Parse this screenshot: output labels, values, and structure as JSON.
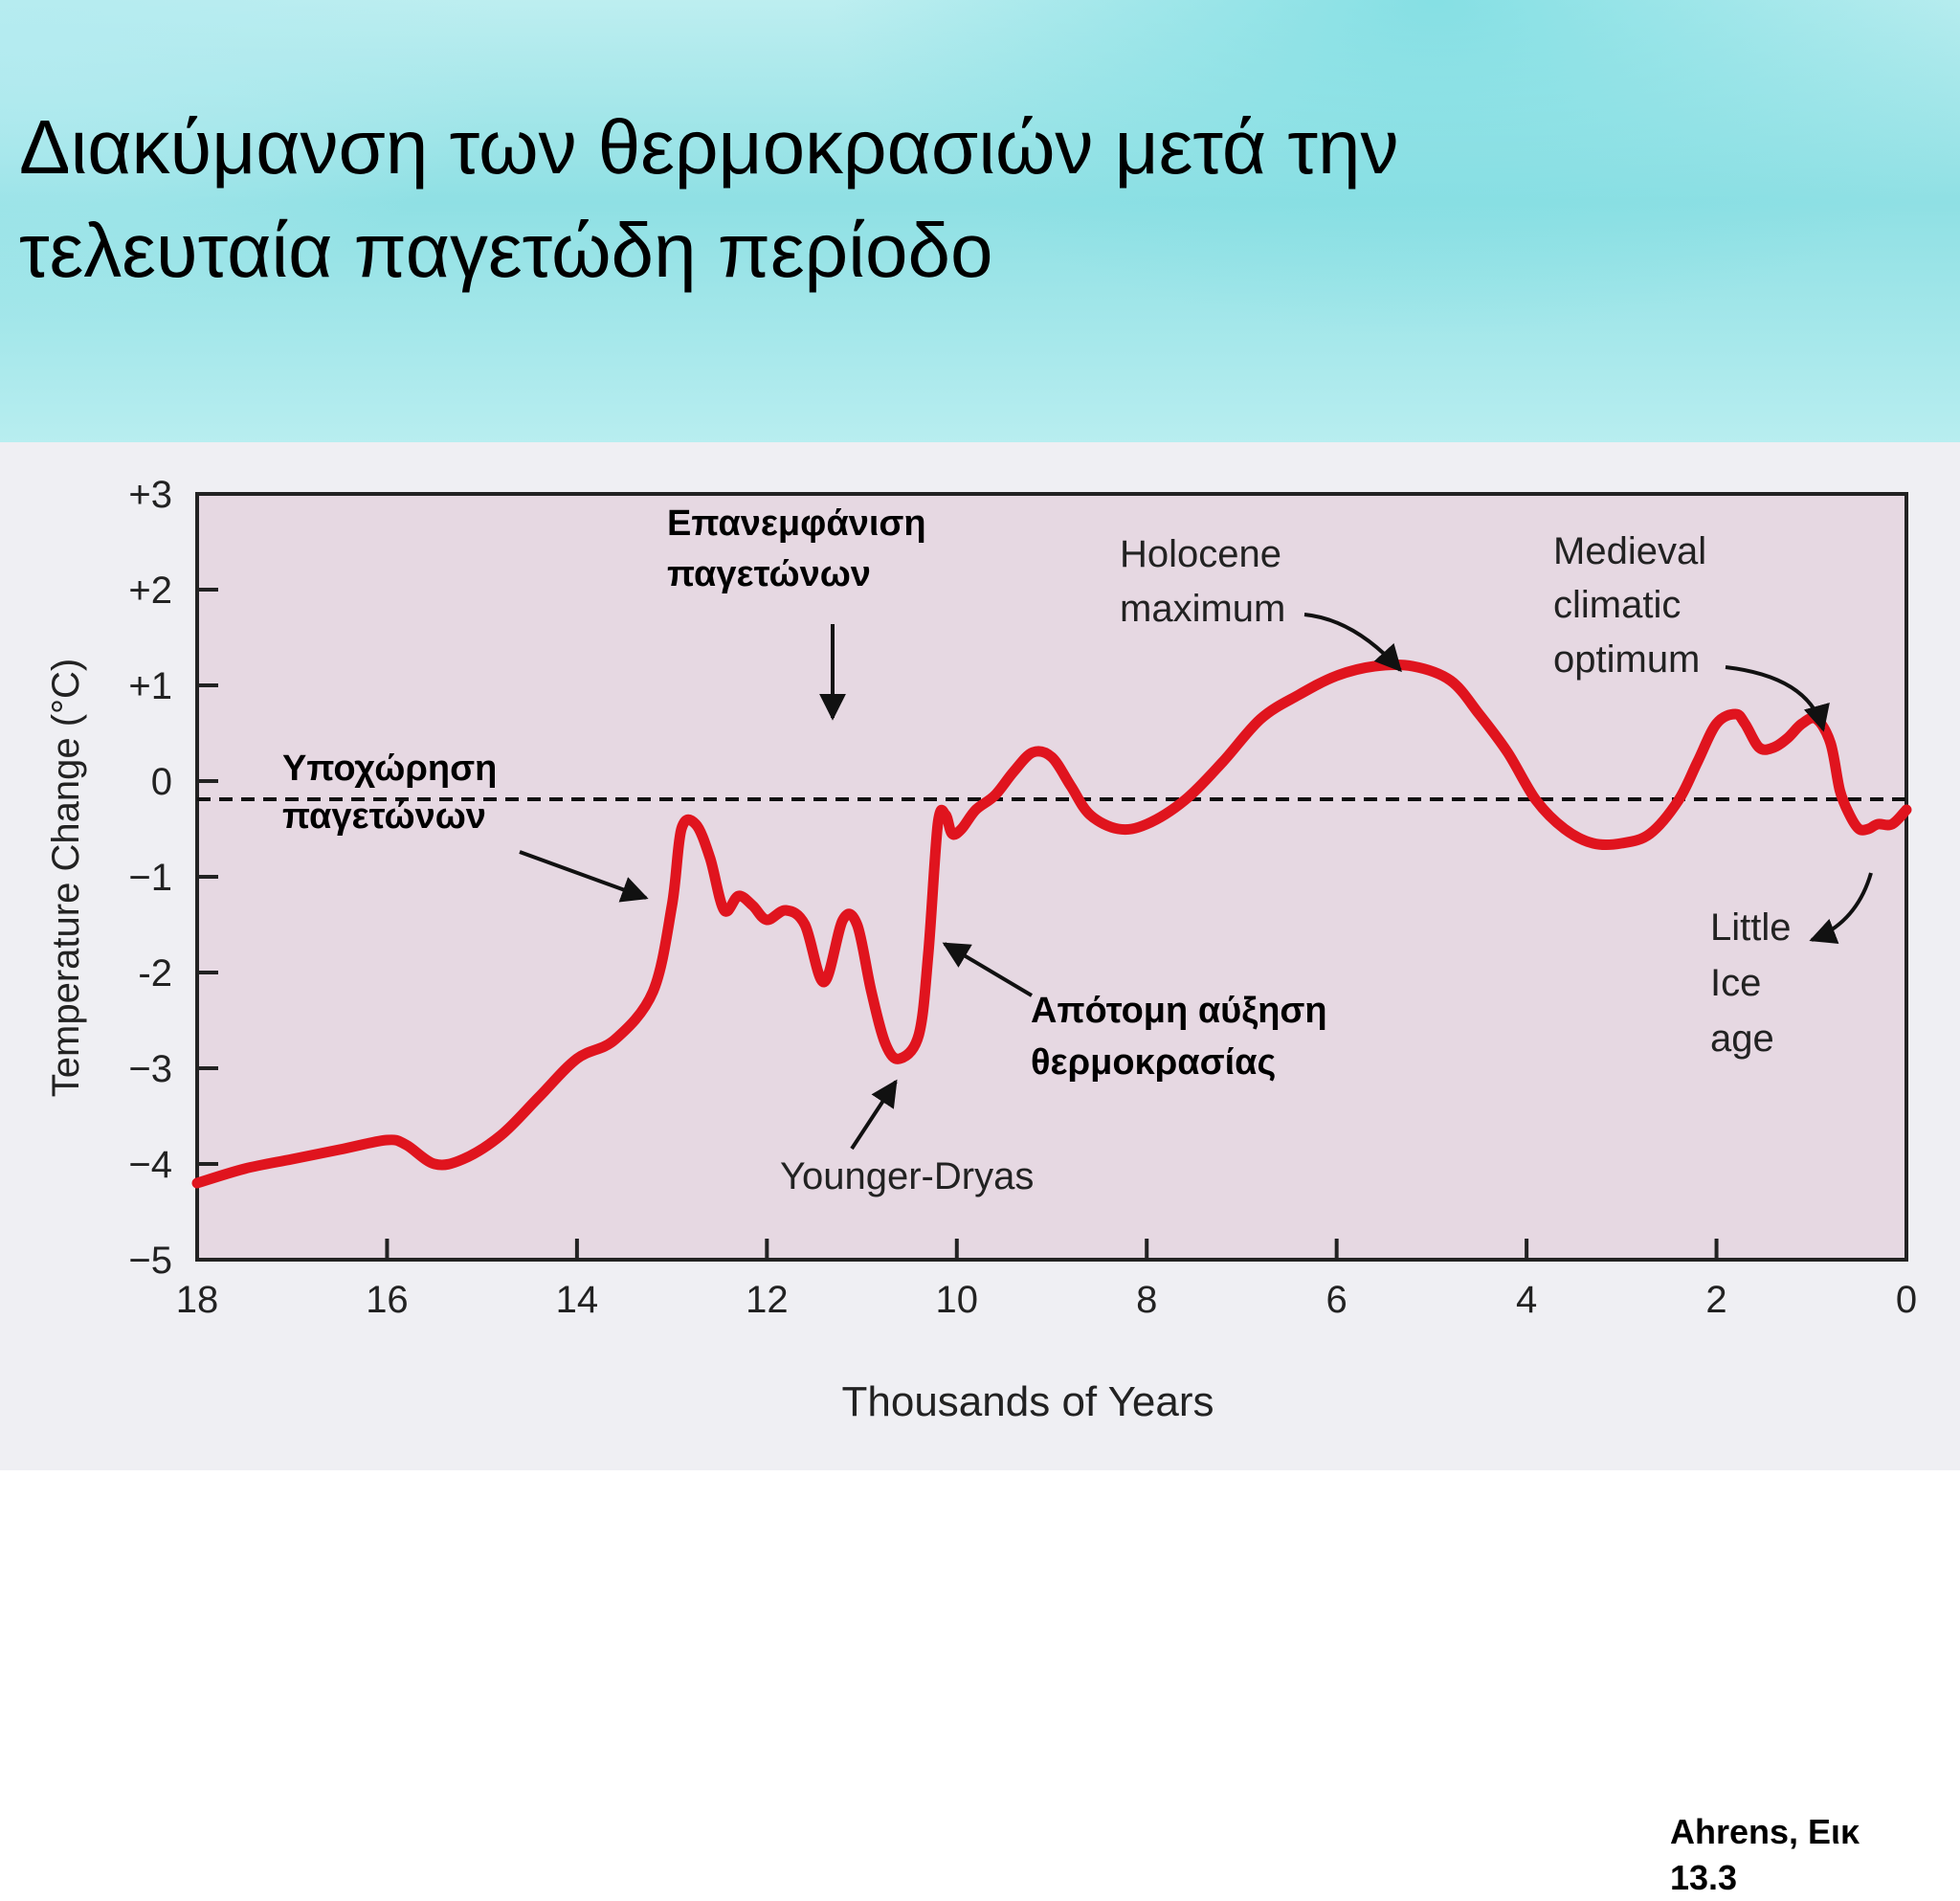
{
  "slide": {
    "title_line1": "Διακύμανση των θερμοκρασιών μετά την",
    "title_line2": "τελευταία παγετώδη περίοδο",
    "citation_line1": "Ahrens, Εικ",
    "citation_line2": "13.3"
  },
  "colors": {
    "curve": "#e0141e",
    "plot_bg": "#e6d8e2",
    "frame": "#222222"
  },
  "chart_data": {
    "type": "line",
    "xlabel": "Thousands of Years",
    "ylabel": "Temperature Change   (°C)",
    "xlim": [
      18,
      0
    ],
    "ylim": [
      -5,
      3
    ],
    "x_reversed": true,
    "grid": false,
    "zero_line": "dashed",
    "xticks": [
      "18",
      "16",
      "14",
      "12",
      "10",
      "8",
      "6",
      "4",
      "2",
      "0"
    ],
    "yticks": [
      "+3",
      "+2",
      "+1",
      "0",
      "−1",
      "-2",
      "−3",
      "−4",
      "−5"
    ],
    "series": [
      {
        "x": [
          18,
          17.5,
          17,
          16.5,
          16,
          15.8,
          15.5,
          15.2,
          14.8,
          14.4,
          14.0,
          13.6,
          13.2,
          13.0,
          12.9,
          12.75,
          12.6,
          12.45,
          12.3,
          12.15,
          12.0,
          11.8,
          11.6,
          11.4,
          11.2,
          11.05,
          10.9,
          10.75,
          10.6,
          10.4,
          10.3,
          10.2,
          10.12,
          10.05,
          9.95,
          9.8,
          9.6,
          9.4,
          9.2,
          9.0,
          8.8,
          8.6,
          8.3,
          8.0,
          7.6,
          7.2,
          6.8,
          6.4,
          6.0,
          5.6,
          5.2,
          4.8,
          4.5,
          4.2,
          3.9,
          3.6,
          3.3,
          3.0,
          2.7,
          2.4,
          2.2,
          2.0,
          1.8,
          1.7,
          1.55,
          1.4,
          1.25,
          1.1,
          0.95,
          0.8,
          0.7,
          0.6,
          0.5,
          0.4,
          0.3,
          0.15,
          0.0
        ],
        "y": [
          -4.2,
          -4.05,
          -3.95,
          -3.85,
          -3.75,
          -3.8,
          -4.0,
          -3.95,
          -3.7,
          -3.3,
          -2.9,
          -2.7,
          -2.2,
          -1.3,
          -0.5,
          -0.45,
          -0.8,
          -1.35,
          -1.2,
          -1.3,
          -1.45,
          -1.35,
          -1.5,
          -2.1,
          -1.45,
          -1.5,
          -2.2,
          -2.75,
          -2.9,
          -2.65,
          -1.8,
          -0.45,
          -0.35,
          -0.55,
          -0.5,
          -0.3,
          -0.15,
          0.1,
          0.3,
          0.25,
          -0.05,
          -0.35,
          -0.5,
          -0.45,
          -0.2,
          0.2,
          0.65,
          0.9,
          1.1,
          1.2,
          1.2,
          1.05,
          0.7,
          0.3,
          -0.2,
          -0.5,
          -0.65,
          -0.65,
          -0.55,
          -0.2,
          0.2,
          0.6,
          0.7,
          0.6,
          0.35,
          0.35,
          0.45,
          0.6,
          0.65,
          0.4,
          -0.1,
          -0.35,
          -0.5,
          -0.5,
          -0.45,
          -0.45,
          -0.3
        ]
      }
    ],
    "annotations": {
      "readvance_line1": "Επανεμφάνιση",
      "readvance_line2": "παγετώνων",
      "retreat_line1": "Υποχώρηση",
      "retreat_line2": "παγετώνων",
      "holocene_line1": "Holocene",
      "holocene_line2": "maximum",
      "medieval_line1": "Medieval",
      "medieval_line2": "climatic",
      "medieval_line3": "optimum",
      "younger_dryas": "Younger-Dryas",
      "abrupt_line1": "Απότομη αύξηση",
      "abrupt_line2": "θερμοκρασίας",
      "lia_line1": "Little",
      "lia_line2": "Ice",
      "lia_line3": "age"
    }
  }
}
